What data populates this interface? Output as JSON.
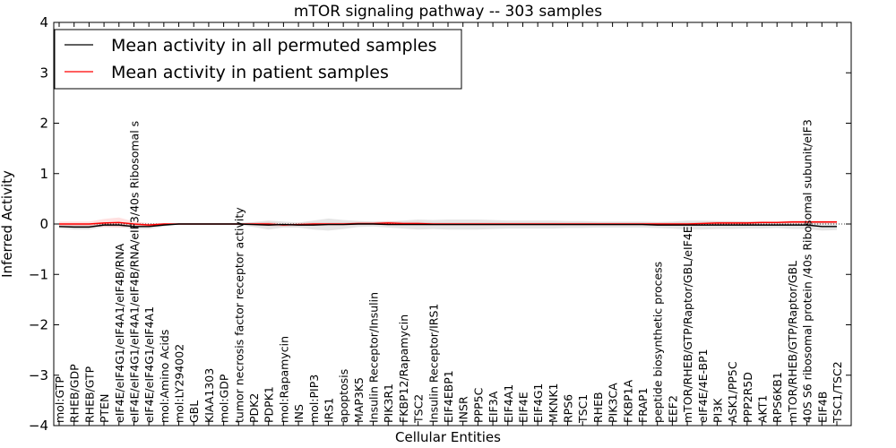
{
  "chart_data": {
    "type": "line",
    "title": "mTOR signaling pathway -- 303 samples",
    "xlabel": "Cellular Entities",
    "ylabel": "Inferred Activity",
    "ylim": [
      -4,
      4
    ],
    "yticks": [
      {
        "value": 4,
        "label": "4"
      },
      {
        "value": 3,
        "label": "3"
      },
      {
        "value": 2,
        "label": "2"
      },
      {
        "value": 1,
        "label": "1"
      },
      {
        "value": 0,
        "label": "0"
      },
      {
        "value": -1,
        "label": "−1"
      },
      {
        "value": -2,
        "label": "−2"
      },
      {
        "value": -3,
        "label": "−3"
      },
      {
        "value": -4,
        "label": "−4"
      }
    ],
    "legend": {
      "position": "top-left"
    },
    "categories": [
      "mol:GTP",
      "RHEB/GDP",
      "RHEB/GTP",
      "PTEN",
      "eIF4E/eIF4G1/eIF4A1/eIF4B/RNA",
      "eIF4E/eIF4G1/eIF4A1/eIF4B/RNA/eIF3/40s Ribosomal s",
      "eIF4E/eIF4G1/eIF4A1",
      "mol:Amino Acids",
      "mol:LY294002",
      "GBL",
      "KIAA1303",
      "mol:GDP",
      "tumor necrosis factor receptor activity",
      "PDK2",
      "PDPK1",
      "mol:Rapamycin",
      "INS",
      "mol:PIP3",
      "IRS1",
      "apoptosis",
      "MAP3K5",
      "Insulin Receptor/Insulin",
      "PIK3R1",
      "FKBP12/Rapamycin",
      "TSC2",
      "Insulin Receptor/IRS1",
      "EIF4EBP1",
      "INSR",
      "PPP5C",
      "EIF3A",
      "EIF4A1",
      "EIF4E",
      "EIF4G1",
      "MKNK1",
      "RPS6",
      "TSC1",
      "RHEB",
      "PIK3CA",
      "FKBP1A",
      "FRAP1",
      "peptide biosynthetic process",
      "EEF2",
      "mTOR/RHEB/GTP/Raptor/GBL/eIF4E",
      "eIF4E/4E-BP1",
      "PI3K",
      "ASK1/PP5C",
      "PPP2R5D",
      "AKT1",
      "RPS6KB1",
      "mTOR/RHEB/GTP/Raptor/GBL",
      "40S S6 ribosomal protein /40s Ribosomal subunit/eIF3",
      "EIF4B",
      "TSC1/TSC2"
    ],
    "series": [
      {
        "name": "Mean activity in all permuted samples",
        "color": "#000000",
        "values": [
          -0.05,
          -0.06,
          -0.06,
          -0.02,
          -0.02,
          -0.05,
          -0.05,
          -0.02,
          0.0,
          0.0,
          0.0,
          0.0,
          0.0,
          -0.01,
          -0.02,
          -0.01,
          -0.02,
          -0.02,
          -0.01,
          -0.01,
          0.0,
          0.0,
          -0.01,
          -0.01,
          -0.01,
          -0.01,
          -0.01,
          -0.01,
          -0.01,
          -0.01,
          -0.01,
          -0.01,
          -0.01,
          -0.01,
          -0.01,
          -0.01,
          -0.01,
          -0.01,
          -0.01,
          -0.01,
          -0.02,
          -0.02,
          -0.02,
          -0.02,
          -0.02,
          -0.02,
          -0.02,
          -0.02,
          -0.02,
          -0.02,
          -0.02,
          -0.05,
          -0.05
        ],
        "band": [
          0.04,
          0.05,
          0.05,
          0.04,
          0.04,
          0.05,
          0.05,
          0.03,
          0.0,
          0.0,
          0.0,
          0.0,
          0.02,
          0.05,
          0.09,
          0.06,
          0.05,
          0.09,
          0.12,
          0.09,
          0.06,
          0.05,
          0.06,
          0.08,
          0.1,
          0.09,
          0.1,
          0.1,
          0.1,
          0.09,
          0.08,
          0.08,
          0.08,
          0.08,
          0.07,
          0.07,
          0.06,
          0.06,
          0.06,
          0.06,
          0.06,
          0.07,
          0.09,
          0.09,
          0.08,
          0.08,
          0.07,
          0.07,
          0.06,
          0.08,
          0.08,
          0.08,
          0.07
        ]
      },
      {
        "name": "Mean activity in patient samples",
        "color": "#ff0000",
        "values": [
          0.0,
          0.0,
          0.0,
          0.02,
          0.03,
          0.0,
          -0.02,
          0.0,
          0.0,
          0.0,
          0.0,
          0.0,
          0.0,
          0.0,
          0.0,
          -0.02,
          -0.01,
          0.0,
          0.0,
          0.0,
          0.01,
          0.01,
          0.02,
          0.01,
          0.01,
          0.0,
          0.0,
          0.0,
          0.0,
          0.0,
          0.0,
          0.0,
          0.0,
          0.0,
          0.0,
          0.0,
          0.0,
          0.0,
          0.0,
          0.0,
          0.0,
          0.0,
          0.0,
          0.01,
          0.02,
          0.02,
          0.02,
          0.03,
          0.03,
          0.04,
          0.04,
          0.04,
          0.04
        ],
        "band": [
          0.05,
          0.05,
          0.05,
          0.08,
          0.1,
          0.05,
          0.04,
          0.02,
          0.0,
          0.0,
          0.0,
          0.0,
          0.01,
          0.03,
          0.04,
          0.03,
          0.03,
          0.03,
          0.03,
          0.03,
          0.03,
          0.03,
          0.04,
          0.03,
          0.03,
          0.03,
          0.03,
          0.03,
          0.03,
          0.03,
          0.03,
          0.03,
          0.03,
          0.03,
          0.03,
          0.03,
          0.03,
          0.03,
          0.03,
          0.03,
          0.03,
          0.03,
          0.03,
          0.03,
          0.03,
          0.03,
          0.03,
          0.03,
          0.03,
          0.03,
          0.03,
          0.03,
          0.03
        ]
      }
    ]
  }
}
